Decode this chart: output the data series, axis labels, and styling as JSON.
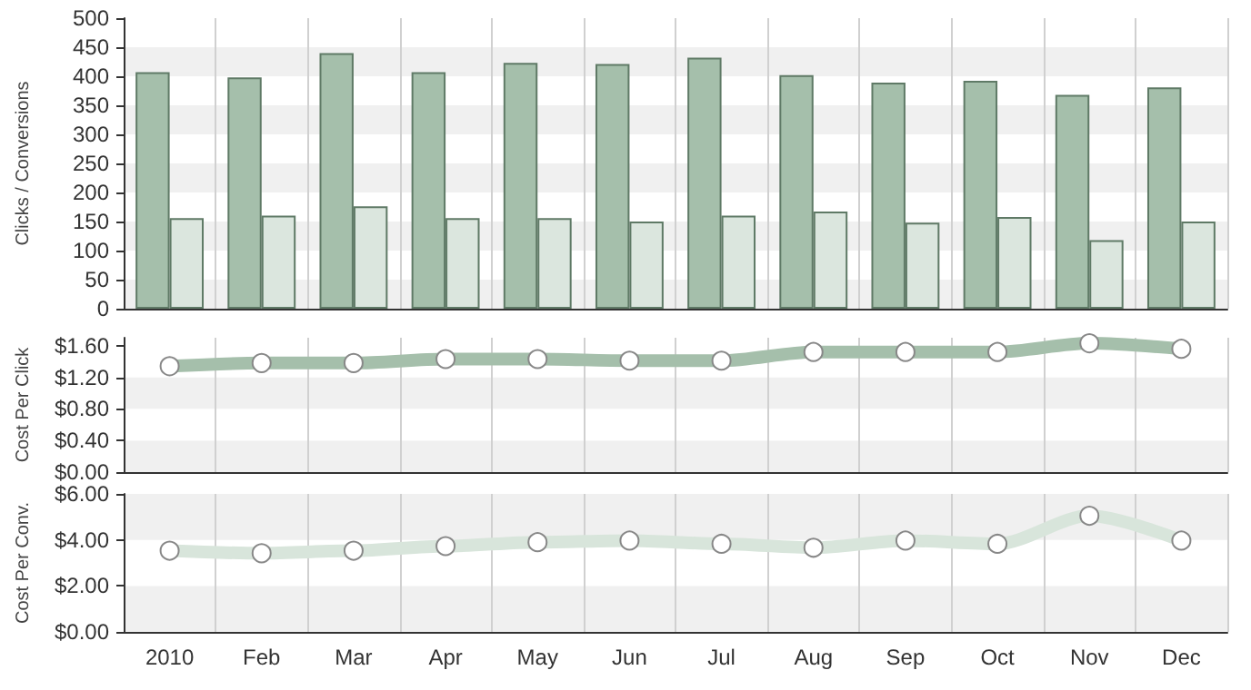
{
  "chart_data": [
    {
      "type": "bar",
      "ylabel": "Clicks / Conversions",
      "categories": [
        null,
        null,
        null,
        null,
        null,
        null,
        null,
        null,
        null,
        null,
        null,
        null
      ],
      "series": [
        {
          "color": "#a5bfab",
          "values": [
            407,
            398,
            440,
            407,
            423,
            421,
            432,
            402,
            389,
            392,
            368,
            381
          ]
        },
        {
          "color": "#dbe6de",
          "values": [
            156,
            160,
            176,
            156,
            156,
            150,
            160,
            167,
            148,
            158,
            118,
            150
          ]
        }
      ],
      "ylim": [
        0,
        500
      ],
      "yticks": [
        0,
        50,
        100,
        150,
        200,
        250,
        300,
        350,
        400,
        450,
        500
      ],
      "grid": true,
      "tick_labels": "y"
    },
    {
      "type": "line",
      "ylabel": "Cost Per Click",
      "categories": [
        null,
        null,
        null,
        null,
        null,
        null,
        null,
        null,
        null,
        null,
        null,
        null
      ],
      "series": [
        {
          "color": "#a5bfab",
          "values": [
            1.34,
            1.38,
            1.38,
            1.43,
            1.43,
            1.41,
            1.41,
            1.52,
            1.52,
            1.52,
            1.63,
            1.56
          ]
        }
      ],
      "ylim": [
        0,
        1.7
      ],
      "yticks": [
        {
          "value": 0,
          "label": "$0.00"
        },
        {
          "value": 0.4,
          "label": "$0.40"
        },
        {
          "value": 0.8,
          "label": "$0.80"
        },
        {
          "value": 1.2,
          "label": "$1.20"
        },
        {
          "value": 1.6,
          "label": "$1.60"
        }
      ],
      "grid": true,
      "tick_labels": "y",
      "marker": "circle",
      "line_style": "solid"
    },
    {
      "type": "line",
      "ylabel": "Cost Per Conv.",
      "categories": [
        "2010",
        "Feb",
        "Mar",
        "Apr",
        "May",
        "Jun",
        "Jul",
        "Aug",
        "Sep",
        "Oct",
        "Nov",
        "Dec"
      ],
      "series": [
        {
          "color": "#d8e5db",
          "values": [
            3.53,
            3.42,
            3.53,
            3.73,
            3.9,
            3.97,
            3.83,
            3.66,
            3.97,
            3.83,
            5.05,
            3.97
          ]
        }
      ],
      "ylim": [
        0,
        6
      ],
      "yticks": [
        {
          "value": 0,
          "label": "$0.00"
        },
        {
          "value": 2,
          "label": "$2.00"
        },
        {
          "value": 4,
          "label": "$4.00"
        },
        {
          "value": 6,
          "label": "$6.00"
        }
      ],
      "grid": true,
      "marker": "circle",
      "line_style": "solid"
    }
  ]
}
